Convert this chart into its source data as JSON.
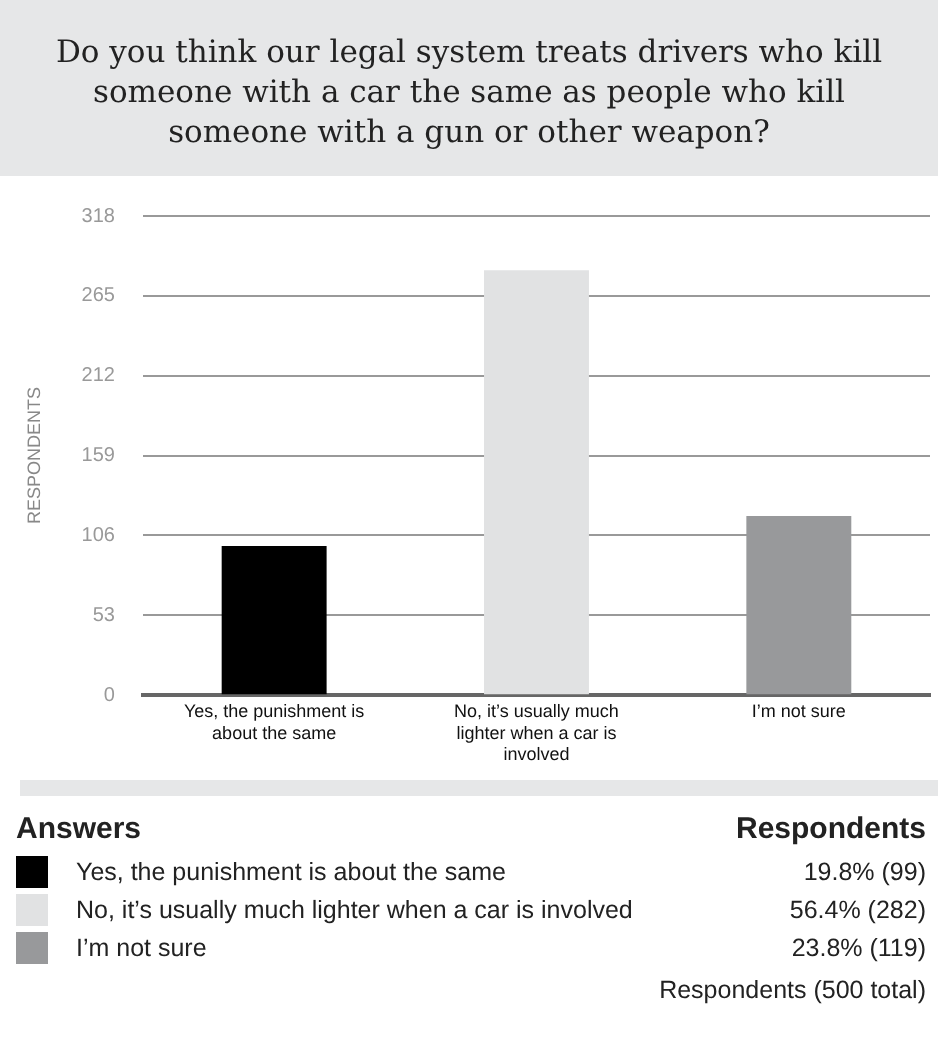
{
  "chart_data": {
    "type": "bar",
    "title": "Do you think our legal system treats drivers who kill someone with a car the same as people who kill someone with a gun or other weapon?",
    "ylabel": "RESPONDENTS",
    "categories": [
      "Yes, the punishment is about the same",
      "No, it’s usually much lighter when a car is involved",
      "I’m not sure"
    ],
    "values": [
      99,
      282,
      119
    ],
    "colors": [
      "#000000",
      "#e1e2e3",
      "#98999b"
    ],
    "ylim": [
      0,
      318
    ],
    "yticks": [
      0,
      53,
      106,
      159,
      212,
      265,
      318
    ],
    "grid": "y",
    "annotations": [
      "Answers",
      "Respondents",
      "19.8% (99)",
      "56.4% (282)",
      "23.8% (119)",
      "Respondents (500 total)"
    ]
  }
}
